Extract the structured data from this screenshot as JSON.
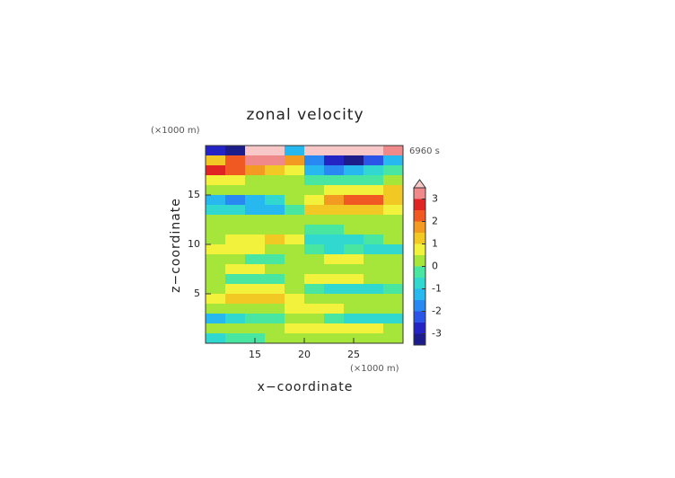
{
  "chart_data": {
    "type": "contour",
    "title": "zonal velocity",
    "x_label": "x−coordinate",
    "y_label": "z−coordinate",
    "x_unit": "(×1000 m)",
    "y_unit": "(×1000 m)",
    "time_label": "6960 s",
    "xlim": [
      10,
      30
    ],
    "ylim": [
      0,
      20
    ],
    "xticks": [
      15,
      20,
      25
    ],
    "yticks": [
      5,
      10,
      15
    ],
    "x": [
      11,
      13,
      15,
      17,
      19,
      21,
      23,
      25,
      27,
      29
    ],
    "y": [
      19.5,
      18.5,
      17.5,
      16.5,
      15.5,
      14.5,
      13.5,
      12.5,
      11.5,
      10.5,
      9.5,
      8.5,
      7.5,
      6.5,
      5.5,
      4.5,
      3.5,
      2.5,
      1.5,
      0.5
    ],
    "z": [
      [
        -3,
        -3.2,
        3.8,
        3.8,
        -1.5,
        3.8,
        3.8,
        3.8,
        3.8,
        3
      ],
      [
        1,
        2,
        3,
        3.2,
        1.5,
        -2,
        -3,
        -3.2,
        -2.5,
        -1.5
      ],
      [
        2.5,
        2,
        1.5,
        1,
        0.5,
        -1.5,
        -2,
        -1.5,
        -1,
        -0.5
      ],
      [
        0.8,
        0.5,
        0.3,
        0.2,
        0.1,
        -0.2,
        -0.3,
        -0.2,
        -0.2,
        0.2
      ],
      [
        0.3,
        0.1,
        0.2,
        0.1,
        0.2,
        0.3,
        0.5,
        0.6,
        0.8,
        1
      ],
      [
        -1.2,
        -1.8,
        -1.5,
        -0.8,
        0.2,
        0.8,
        1.5,
        2,
        2.2,
        1.2
      ],
      [
        -0.6,
        -1,
        -1.3,
        -1.2,
        -0.3,
        1,
        1.2,
        1.3,
        1,
        0.6
      ],
      [
        0.2,
        0.3,
        0.2,
        0.1,
        0.1,
        0.1,
        0.2,
        0.2,
        0.1,
        0.1
      ],
      [
        0.1,
        0.2,
        0.2,
        0.1,
        0.3,
        -0.2,
        -0.1,
        0.1,
        0.1,
        0.2
      ],
      [
        0.3,
        0.6,
        0.9,
        1.2,
        0.5,
        -0.6,
        -1,
        -0.8,
        -0.3,
        0.1
      ],
      [
        0.5,
        0.7,
        0.6,
        0.4,
        0.2,
        -0.3,
        -0.6,
        -0.4,
        -0.6,
        -0.8
      ],
      [
        0.2,
        0.1,
        -0.2,
        -0.4,
        0.1,
        0.3,
        0.5,
        0.7,
        0.3,
        0.1
      ],
      [
        0.4,
        0.6,
        0.5,
        0.3,
        0.1,
        0.2,
        0.3,
        0.2,
        0.1,
        0.2
      ],
      [
        0.1,
        -0.2,
        -0.3,
        -0.1,
        0.1,
        0.6,
        0.8,
        0.7,
        0.4,
        0.2
      ],
      [
        0.3,
        0.6,
        0.8,
        0.6,
        0.3,
        -0.3,
        -0.6,
        -0.8,
        -0.6,
        -0.3
      ],
      [
        0.8,
        1.1,
        1.2,
        1,
        0.6,
        0.2,
        0.3,
        0.2,
        0.1,
        0.2
      ],
      [
        0.3,
        0.2,
        0.1,
        0.3,
        0.6,
        0.8,
        0.6,
        0.3,
        0.2,
        0.4
      ],
      [
        -1.2,
        -0.8,
        -0.4,
        -0.2,
        0.1,
        0.3,
        -0.5,
        -0.8,
        -0.9,
        -0.6
      ],
      [
        0.4,
        0.3,
        0.2,
        0.3,
        0.6,
        0.9,
        0.8,
        0.7,
        0.5,
        0.3
      ],
      [
        -0.6,
        -0.3,
        -0.1,
        0.1,
        0.2,
        0.4,
        0.2,
        0.1,
        0.2,
        0.1
      ]
    ],
    "levels": [
      -3.5,
      -3,
      -2.5,
      -2,
      -1.5,
      -1,
      -0.5,
      0,
      0.5,
      1,
      1.5,
      2,
      2.5,
      3,
      3.5
    ],
    "colors": [
      "#1c1c8a",
      "#2424c4",
      "#2a55e6",
      "#2a88f2",
      "#28b8f0",
      "#30d8d0",
      "#48e6a0",
      "#a6e63a",
      "#f2f23c",
      "#f2c824",
      "#f29a22",
      "#f05a22",
      "#e02424",
      "#f08a8a"
    ],
    "over_color": "#f8c8c8",
    "colorbar_ticks": [
      -3,
      -2,
      -1,
      0,
      1,
      2,
      3
    ]
  }
}
